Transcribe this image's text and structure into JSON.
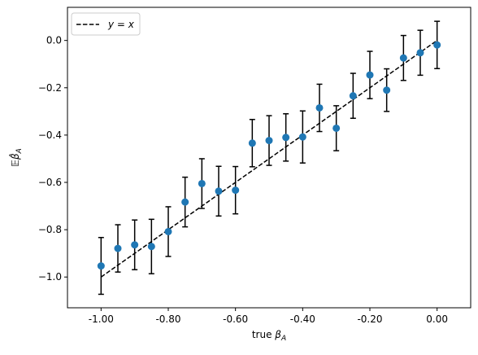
{
  "chart_data": {
    "type": "scatter",
    "xlabel_prefix": "true ",
    "xlabel_symbol": "β",
    "xlabel_sub": "A",
    "ylabel_symbol": "𝔼β̂",
    "ylabel_sub": "A",
    "xlim": [
      -1.1,
      0.1
    ],
    "ylim": [
      -1.13,
      0.14
    ],
    "grid": false,
    "legend_position": "top-left",
    "x_ticks": [
      -1.0,
      -0.8,
      -0.6,
      -0.4,
      -0.2,
      0.0
    ],
    "x_tick_labels": [
      "-1.00",
      "-0.80",
      "-0.60",
      "-0.40",
      "-0.20",
      "0.00"
    ],
    "y_ticks": [
      0.0,
      -0.2,
      -0.4,
      -0.6,
      -0.8,
      -1.0
    ],
    "y_tick_labels": [
      "0.0",
      "−0.2",
      "−0.4",
      "−0.6",
      "−0.8",
      "−1.0"
    ],
    "reference_line": {
      "name": "y = x",
      "x": [
        -1.0,
        0.0
      ],
      "y": [
        -1.0,
        0.0
      ],
      "color": "#000000",
      "style": "dashed"
    },
    "series": [
      {
        "color": "#1f77b4",
        "x": [
          -1.0,
          -0.95,
          -0.9,
          -0.85,
          -0.8,
          -0.75,
          -0.7,
          -0.65,
          -0.6,
          -0.55,
          -0.5,
          -0.45,
          -0.4,
          -0.35,
          -0.3,
          -0.25,
          -0.2,
          -0.15,
          -0.1,
          -0.05,
          0.0
        ],
        "y": [
          -0.953,
          -0.879,
          -0.864,
          -0.871,
          -0.808,
          -0.683,
          -0.605,
          -0.637,
          -0.633,
          -0.434,
          -0.423,
          -0.41,
          -0.408,
          -0.285,
          -0.371,
          -0.234,
          -0.146,
          -0.21,
          -0.074,
          -0.052,
          -0.019
        ],
        "error": [
          0.12,
          0.1,
          0.105,
          0.115,
          0.105,
          0.105,
          0.105,
          0.105,
          0.1,
          0.1,
          0.105,
          0.1,
          0.11,
          0.1,
          0.095,
          0.095,
          0.1,
          0.09,
          0.095,
          0.095,
          0.1
        ]
      }
    ]
  }
}
